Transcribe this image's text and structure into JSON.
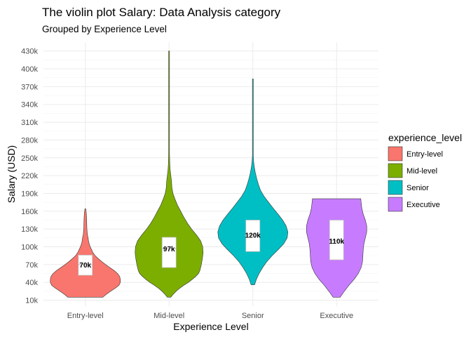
{
  "chart_data": {
    "type": "violin",
    "title": "The violin plot Salary: Data Analysis category",
    "subtitle": "Grouped by Experience Level",
    "xlabel": "Experience Level",
    "ylabel": "Salary (USD)",
    "ylim": [
      0,
      445000
    ],
    "y_ticks": [
      10000,
      40000,
      70000,
      100000,
      130000,
      160000,
      190000,
      220000,
      250000,
      280000,
      310000,
      340000,
      370000,
      400000,
      430000
    ],
    "y_tick_labels": [
      "10k",
      "40k",
      "70k",
      "100k",
      "130k",
      "160k",
      "190k",
      "220k",
      "250k",
      "280k",
      "310k",
      "340k",
      "370k",
      "400k",
      "430k"
    ],
    "grid": true,
    "legend": {
      "title": "experience_level",
      "position": "right"
    },
    "categories": [
      "Entry-level",
      "Mid-level",
      "Senior",
      "Executive"
    ],
    "series": [
      {
        "name": "Entry-level",
        "color": "#F8766D",
        "min": 15000,
        "max": 164000,
        "q1": 52000,
        "median": 70000,
        "q3": 86000,
        "median_label": "70k",
        "density": [
          [
            15000,
            0.5
          ],
          [
            20000,
            0.6
          ],
          [
            25000,
            0.72
          ],
          [
            30000,
            0.85
          ],
          [
            35000,
            0.96
          ],
          [
            40000,
            1.0
          ],
          [
            45000,
            1.0
          ],
          [
            50000,
            0.98
          ],
          [
            55000,
            0.92
          ],
          [
            60000,
            0.82
          ],
          [
            65000,
            0.7
          ],
          [
            70000,
            0.58
          ],
          [
            75000,
            0.47
          ],
          [
            80000,
            0.37
          ],
          [
            85000,
            0.28
          ],
          [
            90000,
            0.22
          ],
          [
            95000,
            0.18
          ],
          [
            100000,
            0.14
          ],
          [
            105000,
            0.11
          ],
          [
            110000,
            0.09
          ],
          [
            115000,
            0.08
          ],
          [
            120000,
            0.06
          ],
          [
            130000,
            0.045
          ],
          [
            140000,
            0.04
          ],
          [
            150000,
            0.035
          ],
          [
            158000,
            0.025
          ],
          [
            164000,
            0.008
          ]
        ]
      },
      {
        "name": "Mid-level",
        "color": "#7CAE00",
        "min": 15000,
        "max": 430000,
        "q1": 65000,
        "median": 97000,
        "q3": 116000,
        "median_label": "97k",
        "density": [
          [
            15000,
            0.05
          ],
          [
            20000,
            0.12
          ],
          [
            25000,
            0.2
          ],
          [
            30000,
            0.3
          ],
          [
            35000,
            0.42
          ],
          [
            40000,
            0.55
          ],
          [
            45000,
            0.66
          ],
          [
            50000,
            0.76
          ],
          [
            55000,
            0.84
          ],
          [
            60000,
            0.88
          ],
          [
            65000,
            0.9
          ],
          [
            70000,
            0.92
          ],
          [
            80000,
            0.95
          ],
          [
            90000,
            0.97
          ],
          [
            100000,
            0.96
          ],
          [
            110000,
            0.9
          ],
          [
            120000,
            0.78
          ],
          [
            130000,
            0.64
          ],
          [
            140000,
            0.52
          ],
          [
            150000,
            0.42
          ],
          [
            160000,
            0.33
          ],
          [
            170000,
            0.24
          ],
          [
            180000,
            0.17
          ],
          [
            190000,
            0.11
          ],
          [
            200000,
            0.08
          ],
          [
            210000,
            0.07
          ],
          [
            220000,
            0.05
          ],
          [
            230000,
            0.03
          ],
          [
            240000,
            0.02
          ],
          [
            250000,
            0.015
          ],
          [
            260000,
            0.008
          ],
          [
            280000,
            0.005
          ],
          [
            300000,
            0.003
          ],
          [
            360000,
            0.003
          ],
          [
            430000,
            0.002
          ]
        ]
      },
      {
        "name": "Senior",
        "color": "#00BFC4",
        "min": 36000,
        "max": 383000,
        "q1": 92000,
        "median": 120000,
        "q3": 145000,
        "median_label": "120k",
        "density": [
          [
            36000,
            0.05
          ],
          [
            45000,
            0.1
          ],
          [
            55000,
            0.18
          ],
          [
            65000,
            0.28
          ],
          [
            75000,
            0.4
          ],
          [
            85000,
            0.55
          ],
          [
            95000,
            0.72
          ],
          [
            105000,
            0.88
          ],
          [
            115000,
            0.98
          ],
          [
            125000,
            1.0
          ],
          [
            135000,
            0.95
          ],
          [
            145000,
            0.85
          ],
          [
            155000,
            0.72
          ],
          [
            165000,
            0.58
          ],
          [
            175000,
            0.45
          ],
          [
            185000,
            0.32
          ],
          [
            195000,
            0.22
          ],
          [
            205000,
            0.16
          ],
          [
            215000,
            0.11
          ],
          [
            225000,
            0.07
          ],
          [
            235000,
            0.04
          ],
          [
            245000,
            0.02
          ],
          [
            255000,
            0.012
          ],
          [
            270000,
            0.008
          ],
          [
            290000,
            0.004
          ],
          [
            320000,
            0.002
          ],
          [
            383000,
            0.001
          ]
        ]
      },
      {
        "name": "Executive",
        "color": "#C77CFF",
        "min": 15000,
        "max": 181000,
        "q1": 78000,
        "median": 110000,
        "q3": 145000,
        "median_label": "110k",
        "density": [
          [
            15000,
            0.1
          ],
          [
            25000,
            0.22
          ],
          [
            35000,
            0.35
          ],
          [
            45000,
            0.5
          ],
          [
            55000,
            0.62
          ],
          [
            65000,
            0.7
          ],
          [
            75000,
            0.74
          ],
          [
            85000,
            0.75
          ],
          [
            95000,
            0.76
          ],
          [
            105000,
            0.78
          ],
          [
            115000,
            0.82
          ],
          [
            125000,
            0.86
          ],
          [
            135000,
            0.86
          ],
          [
            145000,
            0.82
          ],
          [
            155000,
            0.76
          ],
          [
            165000,
            0.72
          ],
          [
            175000,
            0.7
          ],
          [
            181000,
            0.69
          ]
        ]
      }
    ]
  }
}
